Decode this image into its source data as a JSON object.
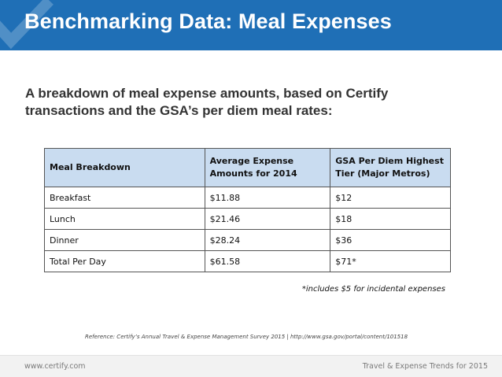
{
  "header": {
    "title": "Benchmarking Data: Meal Expenses",
    "background_color": "#1f6fb6"
  },
  "subtitle": "A breakdown of meal expense amounts, based on Certify transactions and the GSA’s per diem meal rates:",
  "table": {
    "header_color": "#c9dcf0",
    "columns": [
      "Meal Breakdown",
      "Average Expense Amounts for 2014",
      "GSA Per Diem Highest Tier (Major Metros)"
    ],
    "rows": [
      [
        "Breakfast",
        "$11.88",
        "$12"
      ],
      [
        "Lunch",
        "$21.46",
        "$18"
      ],
      [
        "Dinner",
        "$28.24",
        "$36"
      ],
      [
        "Total Per Day",
        "$61.58",
        "$71*"
      ]
    ]
  },
  "footnote": "*includes $5 for incidental expenses",
  "reference": "Reference: Certify’s Annual Travel & Expense Management Survey 2015   |   http://www.gsa.gov/portal/content/101518",
  "footer": {
    "left": "www.certify.com",
    "right": "Travel & Expense Trends for 2015"
  }
}
